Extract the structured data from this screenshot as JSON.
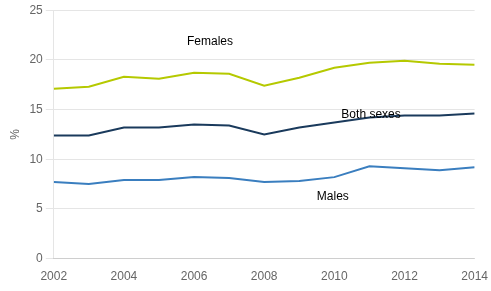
{
  "chart_data": {
    "type": "line",
    "x": [
      2002,
      2003,
      2004,
      2005,
      2006,
      2007,
      2008,
      2009,
      2010,
      2011,
      2012,
      2013,
      2014
    ],
    "series": [
      {
        "color": "#b5c900",
        "values": [
          17.1,
          17.3,
          18.3,
          18.1,
          18.7,
          18.6,
          17.4,
          18.2,
          19.2,
          19.7,
          19.9,
          19.6,
          19.5
        ]
      },
      {
        "color": "#1a3a5c",
        "values": [
          12.4,
          12.4,
          13.2,
          13.2,
          13.5,
          13.4,
          12.5,
          13.2,
          13.7,
          14.2,
          14.4,
          14.4,
          14.6
        ]
      },
      {
        "color": "#3a7ebf",
        "values": [
          7.7,
          7.5,
          7.9,
          7.9,
          8.2,
          8.1,
          7.7,
          7.8,
          8.2,
          9.3,
          9.1,
          8.9,
          9.2
        ]
      }
    ],
    "annotations": [
      {
        "text": "Females",
        "x": 2005.8,
        "y": 21.2
      },
      {
        "text": "Both sexes",
        "x": 2010.2,
        "y": 13.9
      },
      {
        "text": "Males",
        "x": 2009.5,
        "y": 5.6
      }
    ],
    "y_label": "%",
    "xlim": [
      2002,
      2014
    ],
    "xticks": [
      2002,
      2004,
      2006,
      2008,
      2010,
      2012,
      2014
    ],
    "ylim": [
      0,
      25
    ],
    "yticks": [
      0,
      5,
      10,
      15,
      20,
      25
    ],
    "grid": "y"
  }
}
